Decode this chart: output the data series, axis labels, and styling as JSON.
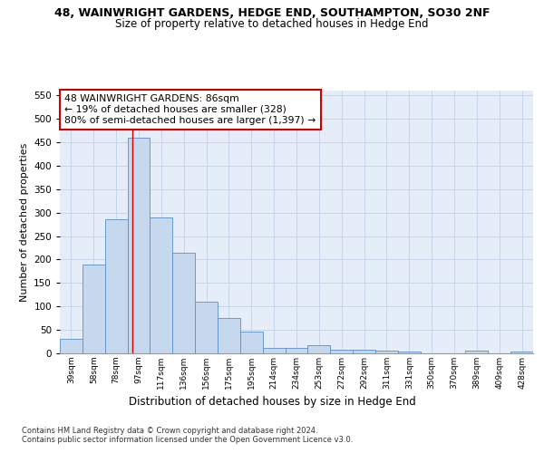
{
  "title": "48, WAINWRIGHT GARDENS, HEDGE END, SOUTHAMPTON, SO30 2NF",
  "subtitle": "Size of property relative to detached houses in Hedge End",
  "xlabel": "Distribution of detached houses by size in Hedge End",
  "ylabel": "Number of detached properties",
  "bar_labels": [
    "39sqm",
    "58sqm",
    "78sqm",
    "97sqm",
    "117sqm",
    "136sqm",
    "156sqm",
    "175sqm",
    "195sqm",
    "214sqm",
    "234sqm",
    "253sqm",
    "272sqm",
    "292sqm",
    "311sqm",
    "331sqm",
    "350sqm",
    "370sqm",
    "389sqm",
    "409sqm",
    "428sqm"
  ],
  "bar_values": [
    30,
    190,
    285,
    460,
    290,
    215,
    110,
    75,
    47,
    12,
    12,
    18,
    7,
    8,
    5,
    4,
    0,
    0,
    5,
    0,
    4
  ],
  "bar_color": "#c5d8ee",
  "bar_edge_color": "#5b8ec9",
  "background_color": "#ffffff",
  "grid_color": "#c8d4e8",
  "red_line_x": 2.72,
  "annotation_text": "48 WAINWRIGHT GARDENS: 86sqm\n← 19% of detached houses are smaller (328)\n80% of semi-detached houses are larger (1,397) →",
  "annotation_box_color": "#ffffff",
  "annotation_box_edge_color": "#cc0000",
  "ylim": [
    0,
    560
  ],
  "yticks": [
    0,
    50,
    100,
    150,
    200,
    250,
    300,
    350,
    400,
    450,
    500,
    550
  ],
  "footer_line1": "Contains HM Land Registry data © Crown copyright and database right 2024.",
  "footer_line2": "Contains public sector information licensed under the Open Government Licence v3.0."
}
